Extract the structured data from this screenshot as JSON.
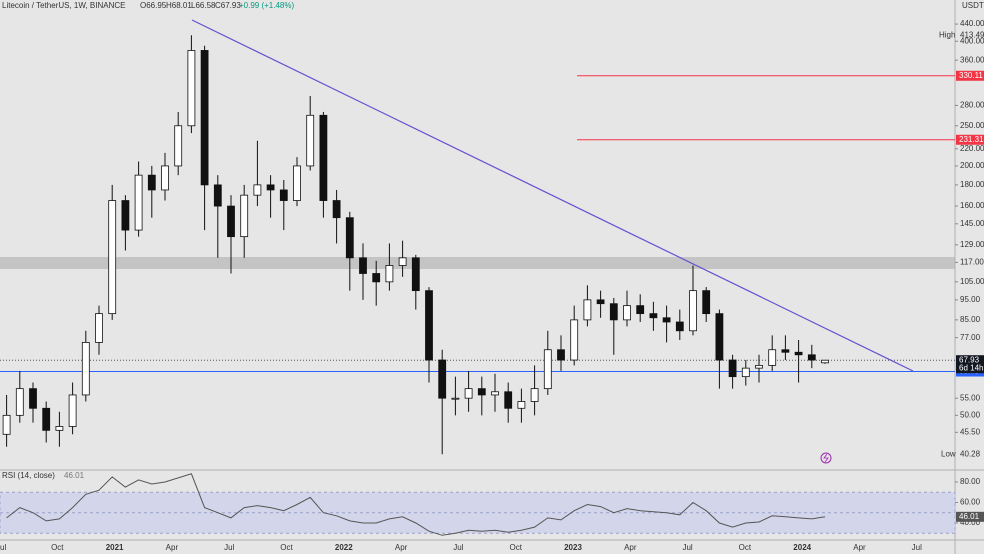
{
  "header": {
    "symbol": "Litecoin / TetherUS, 1W, BINANCE",
    "open": "O66.95",
    "high": "H68.01",
    "low": "L66.58",
    "close": "C67.93",
    "change": "+0.99 (+1.48%)"
  },
  "chart_data": [
    {
      "type": "candlestick",
      "currency": "USDT",
      "log": true,
      "ylim": [
        36.9,
        503
      ],
      "yticks": [
        {
          "value": 440,
          "label": "440.00"
        },
        {
          "value": 400,
          "label": "400.00"
        },
        {
          "value": 360,
          "label": "360.00"
        },
        {
          "value": 280,
          "label": "280.00"
        },
        {
          "value": 250,
          "label": "250.00"
        },
        {
          "value": 220,
          "label": "220.00"
        },
        {
          "value": 200,
          "label": "200.00"
        },
        {
          "value": 180,
          "label": "180.00"
        },
        {
          "value": 160,
          "label": "160.00"
        },
        {
          "value": 145,
          "label": "145.00"
        },
        {
          "value": 129,
          "label": "129.00"
        },
        {
          "value": 117,
          "label": "117.00"
        },
        {
          "value": 105,
          "label": "105.00"
        },
        {
          "value": 95,
          "label": "95.00"
        },
        {
          "value": 85,
          "label": "85.00"
        },
        {
          "value": 77,
          "label": "77.00"
        },
        {
          "value": 55,
          "label": "55.00"
        },
        {
          "value": 50,
          "label": "50.00"
        },
        {
          "value": 45.5,
          "label": "45.50"
        }
      ],
      "categories": [
        "ul",
        "Oct",
        "2021",
        "Apr",
        "Jul",
        "Oct",
        "2022",
        "Apr",
        "Jul",
        "Oct",
        "2023",
        "Apr",
        "Jul",
        "Oct",
        "2024",
        "Apr",
        "Jul"
      ],
      "open": [
        45,
        50,
        58,
        52,
        46,
        47,
        56,
        75,
        88,
        165,
        140,
        190,
        175,
        200,
        250,
        380,
        180,
        160,
        135,
        170,
        180,
        175,
        165,
        200,
        265,
        165,
        150,
        120,
        110,
        105,
        115,
        120,
        100,
        68,
        55,
        55,
        58,
        56,
        57,
        52,
        54,
        58,
        72,
        68,
        85,
        95,
        93,
        85,
        92,
        88,
        86,
        84,
        80,
        100,
        88,
        68,
        62,
        65,
        66,
        72,
        71,
        70,
        66.95
      ],
      "high": [
        56,
        64,
        60,
        54,
        51,
        60,
        80,
        92,
        180,
        170,
        205,
        200,
        215,
        270,
        413.49,
        390,
        190,
        170,
        180,
        230,
        190,
        185,
        210,
        295,
        270,
        175,
        155,
        130,
        118,
        130,
        132,
        122,
        102,
        72,
        62,
        64,
        62,
        63,
        60,
        58,
        66,
        80,
        78,
        92,
        103,
        100,
        96,
        100,
        98,
        94,
        92,
        90,
        115,
        102,
        90,
        70,
        68,
        70,
        78,
        78,
        76,
        74,
        68.01
      ],
      "low": [
        42,
        48,
        48,
        43,
        42,
        45,
        54,
        70,
        85,
        125,
        135,
        150,
        165,
        190,
        240,
        140,
        120,
        110,
        120,
        160,
        150,
        140,
        160,
        195,
        150,
        130,
        100,
        95,
        92,
        100,
        108,
        90,
        60,
        40.28,
        50,
        51,
        50,
        51,
        48,
        48,
        50,
        56,
        64,
        66,
        82,
        86,
        70,
        82,
        84,
        80,
        75,
        76,
        78,
        84,
        58,
        58,
        59,
        60,
        64,
        68,
        60,
        65,
        66.58
      ],
      "close": [
        50,
        58,
        52,
        46,
        47,
        56,
        75,
        88,
        165,
        140,
        190,
        175,
        200,
        250,
        380,
        180,
        160,
        135,
        170,
        180,
        175,
        165,
        200,
        265,
        165,
        150,
        120,
        110,
        105,
        115,
        120,
        100,
        68,
        55,
        55,
        58,
        56,
        57,
        52,
        54,
        58,
        72,
        68,
        85,
        95,
        93,
        85,
        92,
        88,
        86,
        84,
        80,
        100,
        88,
        68,
        62,
        65,
        66,
        72,
        71,
        70,
        68,
        67.93
      ],
      "levels": [
        {
          "value": 330.11,
          "color": "#f23645"
        },
        {
          "value": 231.31,
          "color": "#f23645"
        }
      ],
      "support": {
        "value": 63.79,
        "color": "#2962ff"
      },
      "last_price": 67.93,
      "countdown": "6d 14h",
      "high_label": "High",
      "high_value": 413.49,
      "low_label": "Low",
      "low_value": 40.28
    },
    {
      "type": "line",
      "title": "RSI (14, close)",
      "last": 46.01,
      "color": "#555555",
      "ylim": [
        23.4,
        91.7
      ],
      "yticks": [
        {
          "value": 80,
          "label": "80.00"
        },
        {
          "value": 60,
          "label": "60.00"
        },
        {
          "value": 40,
          "label": "40.00"
        }
      ],
      "band": [
        30,
        70
      ],
      "midline": 50,
      "values": [
        45,
        55,
        50,
        42,
        44,
        55,
        68,
        72,
        85,
        75,
        82,
        78,
        80,
        84,
        88,
        55,
        50,
        45,
        55,
        57,
        55,
        52,
        58,
        65,
        50,
        47,
        42,
        40,
        40,
        44,
        46,
        40,
        32,
        28,
        30,
        33,
        32,
        33,
        31,
        33,
        36,
        45,
        43,
        52,
        58,
        56,
        50,
        54,
        52,
        51,
        50,
        48,
        60,
        52,
        40,
        36,
        40,
        41,
        47,
        46,
        45,
        44,
        46.01
      ]
    }
  ]
}
